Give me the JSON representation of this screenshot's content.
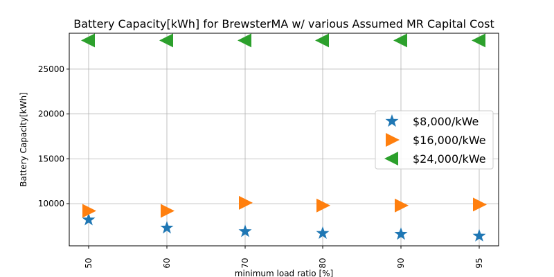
{
  "chart_data": {
    "type": "scatter",
    "title": "Battery Capacity[kWh] for BrewsterMA w/ various Assumed MR Capital Cost",
    "xlabel": "minimum load ratio [%]",
    "ylabel": "Battery Capacity[kWh]",
    "categories": [
      "50",
      "60",
      "70",
      "80",
      "90",
      "95"
    ],
    "yticks": [
      10000,
      15000,
      20000,
      25000
    ],
    "ylim": [
      5300,
      29000
    ],
    "grid": true,
    "legend_position": "center-right",
    "series": [
      {
        "name": "$8,000/kWe",
        "marker": "star",
        "color": "#1f77b4",
        "values": [
          8200,
          7300,
          6900,
          6700,
          6600,
          6400
        ]
      },
      {
        "name": "$16,000/kWe",
        "marker": "triangle-right",
        "color": "#ff7f0e",
        "values": [
          9200,
          9200,
          10100,
          9800,
          9800,
          9900
        ]
      },
      {
        "name": "$24,000/kWe",
        "marker": "triangle-left",
        "color": "#2ca02c",
        "values": [
          28200,
          28200,
          28200,
          28200,
          28200,
          28200
        ]
      }
    ]
  }
}
